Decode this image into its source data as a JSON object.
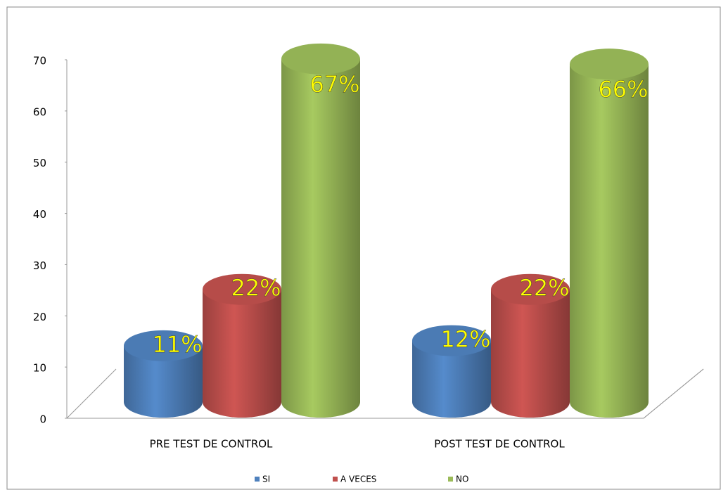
{
  "chart_data": {
    "type": "bar3d",
    "categories": [
      "PRE TEST DE CONTROL",
      "POST TEST DE CONTROL"
    ],
    "series": [
      {
        "name": "SI",
        "color": "#4f81bd",
        "values": [
          11,
          12
        ],
        "value_labels": [
          "11%",
          "12%"
        ]
      },
      {
        "name": "A VECES",
        "color": "#c0504d",
        "values": [
          22,
          22
        ],
        "value_labels": [
          "22%",
          "22%"
        ]
      },
      {
        "name": "NO",
        "color": "#9bbb59",
        "values": [
          67,
          66
        ],
        "value_labels": [
          "67%",
          "66%"
        ]
      }
    ],
    "ylim": [
      0,
      70
    ],
    "yticks": [
      0,
      10,
      20,
      30,
      40,
      50,
      60,
      70
    ],
    "legend": "bottom"
  }
}
